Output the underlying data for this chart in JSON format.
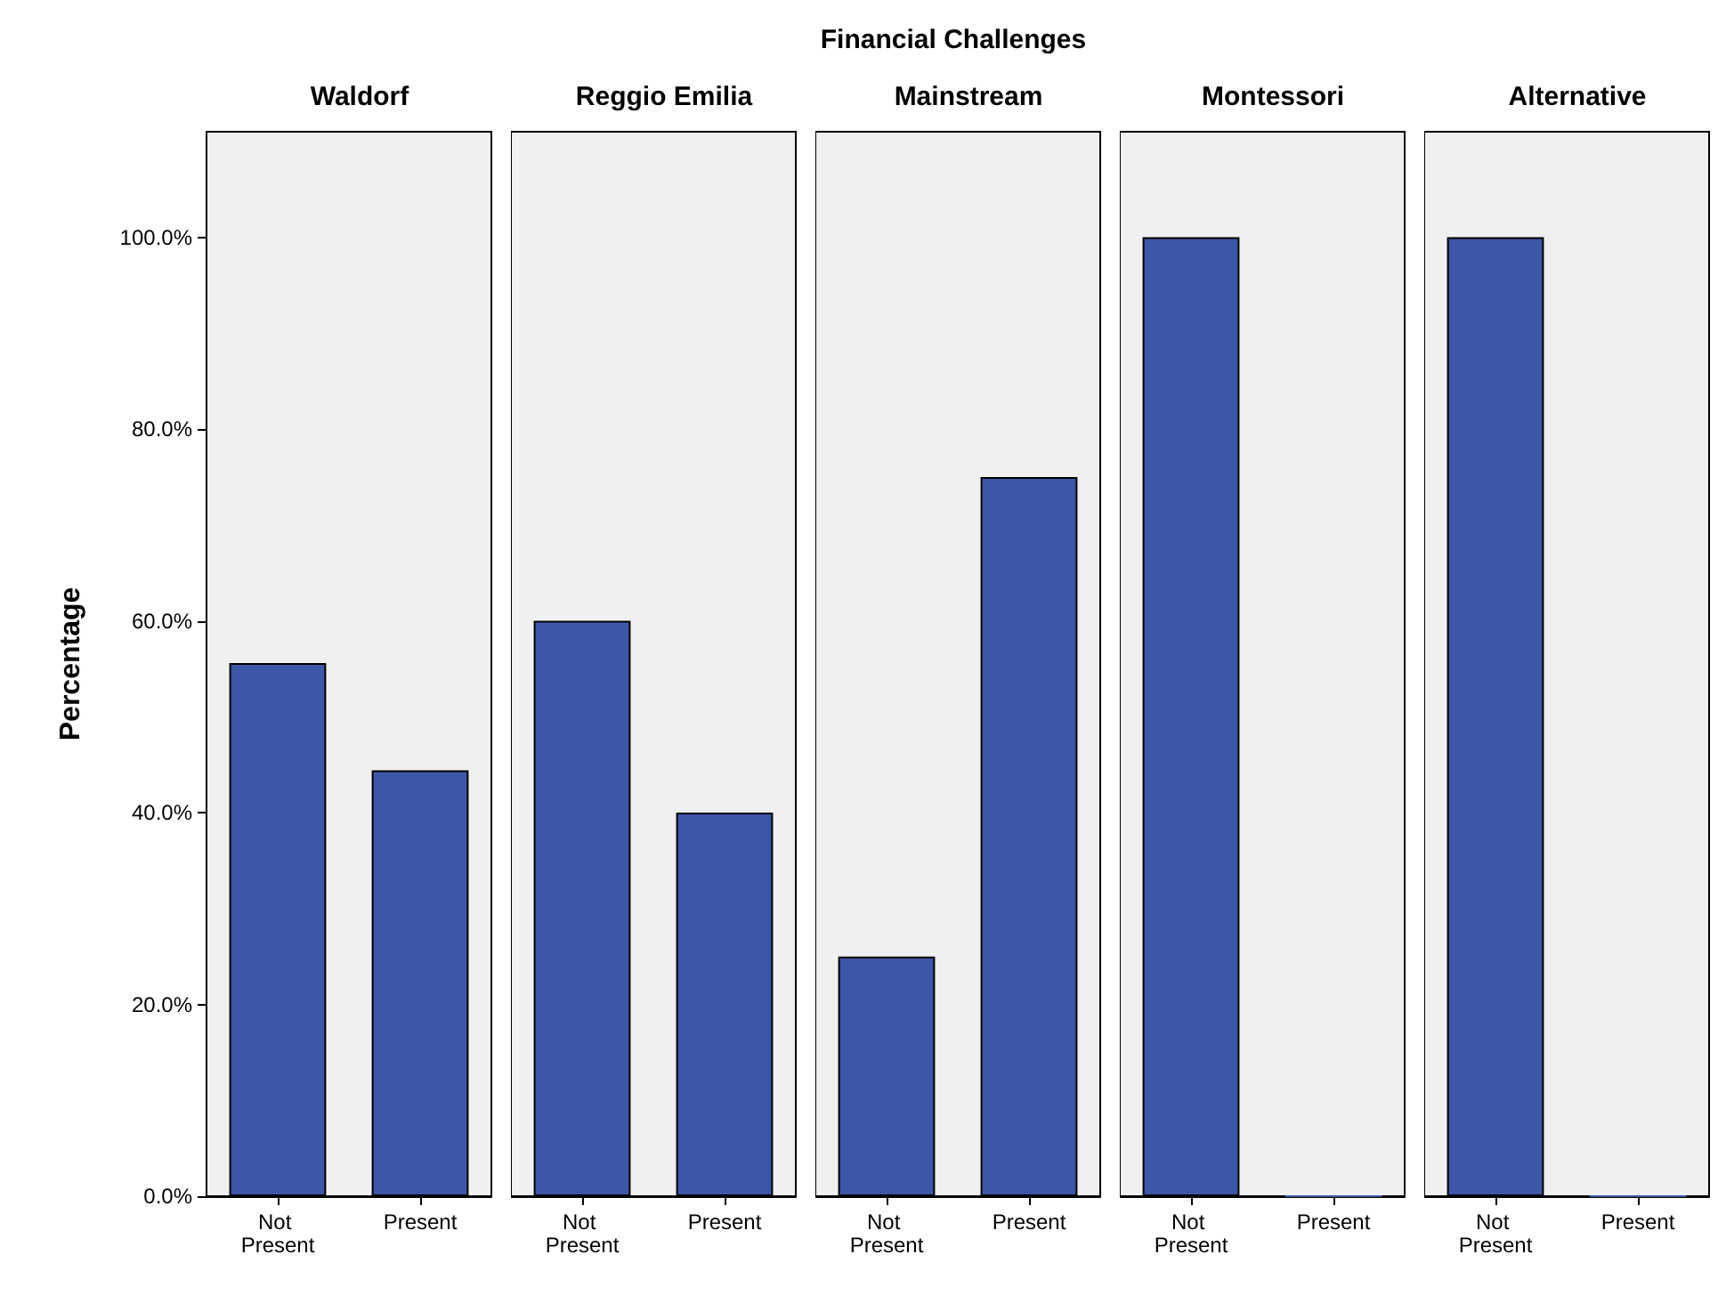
{
  "chart_data": [
    {
      "type": "bar",
      "title": "Waldorf",
      "ylabel": "Percentage",
      "annotations": [
        "Financial Challenges"
      ],
      "categories": [
        "Not Present",
        "Present"
      ],
      "values": [
        55.6,
        44.4
      ],
      "color": "#3c56a8",
      "ylim": [
        0,
        111
      ],
      "yticks": [
        {
          "value": 0,
          "label": "0.0%"
        },
        {
          "value": 20,
          "label": "20.0%"
        },
        {
          "value": 40,
          "label": "40.0%"
        },
        {
          "value": 60,
          "label": "60.0%"
        },
        {
          "value": 80,
          "label": "80.0%"
        },
        {
          "value": 100,
          "label": "100.0%"
        }
      ]
    },
    {
      "type": "bar",
      "title": "Reggio Emilia",
      "categories": [
        "Not Present",
        "Present"
      ],
      "values": [
        60,
        40
      ],
      "color": "#3c56a8",
      "ylim": [
        0,
        111
      ],
      "tick_labels": "x"
    },
    {
      "type": "bar",
      "title": "Mainstream",
      "categories": [
        "Not Present",
        "Present"
      ],
      "values": [
        25,
        75
      ],
      "color": "#3c56a8",
      "ylim": [
        0,
        111
      ],
      "tick_labels": "x"
    },
    {
      "type": "bar",
      "title": "Montessori",
      "categories": [
        "Not Present",
        "Present"
      ],
      "values": [
        100,
        0
      ],
      "color": "#3c56a8",
      "ylim": [
        0,
        111
      ],
      "tick_labels": "x"
    },
    {
      "type": "bar",
      "title": "Alternative",
      "categories": [
        "Not Present",
        "Present"
      ],
      "values": [
        100,
        0
      ],
      "color": "#3c56a8",
      "ylim": [
        0,
        111
      ],
      "tick_labels": "x"
    }
  ]
}
